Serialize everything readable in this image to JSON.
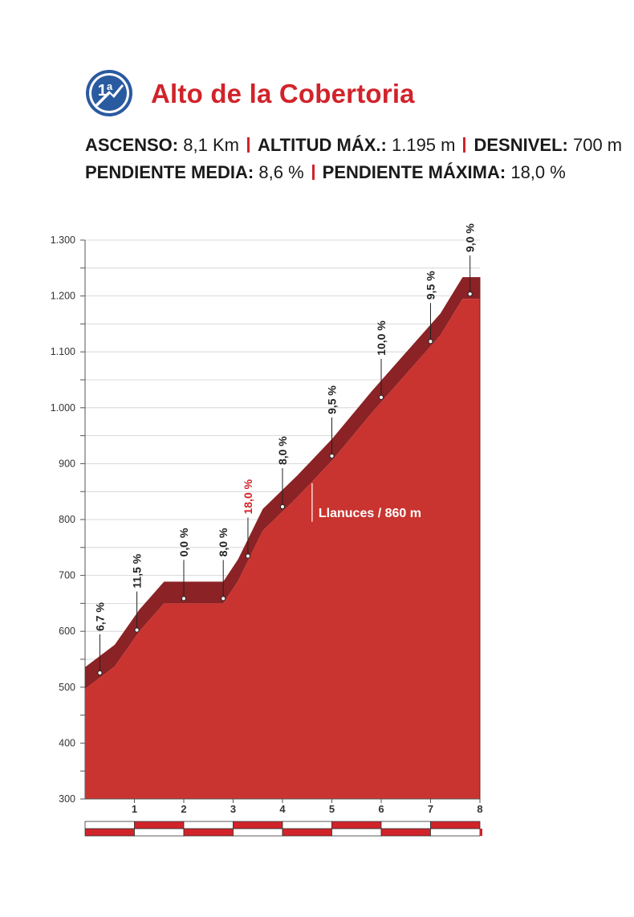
{
  "header": {
    "badge_text": "1ª",
    "title": "Alto de la Cobertoria",
    "stats": [
      {
        "label": "ASCENSO:",
        "value": "8,1 Km"
      },
      {
        "label": "ALTITUD MÁX.:",
        "value": "1.195 m"
      },
      {
        "label": "DESNIVEL:",
        "value": "700 m"
      },
      {
        "label": "PENDIENTE MEDIA:",
        "value": "8,6 %"
      },
      {
        "label": "PENDIENTE MÁXIMA:",
        "value": "18,0 %"
      }
    ]
  },
  "colors": {
    "accent": "#d1232a",
    "profile_fill": "#c93430",
    "profile_top": "#8b2225",
    "badge_blue": "#2a5aa0"
  },
  "chart_data": {
    "type": "area",
    "xlabel": "",
    "ylabel": "",
    "x_range": [
      0,
      8
    ],
    "y_range": [
      300,
      1300
    ],
    "y_ticks": [
      "300",
      "400",
      "500",
      "600",
      "700",
      "800",
      "900",
      "1.000",
      "1.100",
      "1.200",
      "1.300"
    ],
    "x_ticks": [
      "1",
      "2",
      "3",
      "4",
      "5",
      "6",
      "7",
      "8"
    ],
    "grid": true,
    "series": [
      {
        "x": [
          0,
          0.6,
          1.1,
          1.6,
          2.2,
          2.8,
          3.1,
          3.6,
          4.3,
          5.0,
          5.8,
          6.5,
          7.2,
          7.65,
          8.1
        ],
        "y": [
          497,
          537,
          600,
          650,
          650,
          650,
          690,
          780,
          840,
          905,
          990,
          1060,
          1130,
          1195,
          1195
        ]
      }
    ],
    "gradients": [
      {
        "label": "6,7 %",
        "km": 0.3,
        "highlight": false
      },
      {
        "label": "11,5 %",
        "km": 1.05,
        "highlight": false
      },
      {
        "label": "0,0 %",
        "km": 2.0,
        "highlight": false
      },
      {
        "label": "8,0 %",
        "km": 2.8,
        "highlight": false
      },
      {
        "label": "18,0 %",
        "km": 3.3,
        "highlight": true
      },
      {
        "label": "8,0 %",
        "km": 4.0,
        "highlight": false
      },
      {
        "label": "9,5 %",
        "km": 5.0,
        "highlight": false
      },
      {
        "label": "10,0 %",
        "km": 6.0,
        "highlight": false
      },
      {
        "label": "9,5 %",
        "km": 7.0,
        "highlight": false
      },
      {
        "label": "9,0 %",
        "km": 7.8,
        "highlight": false
      }
    ],
    "annotations": [
      {
        "text": "Llanuces / 860 m",
        "km": 4.6,
        "altitude": 860
      }
    ]
  }
}
